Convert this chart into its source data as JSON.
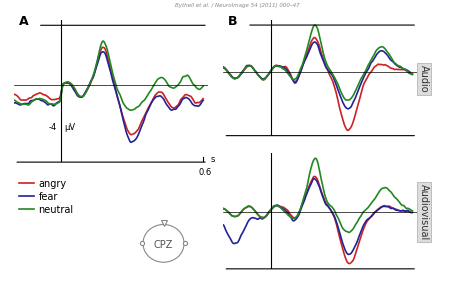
{
  "colors": {
    "angry": "#cc2222",
    "fear": "#222299",
    "neutral": "#228822"
  },
  "panel_A_label": "A",
  "panel_B_label": "B",
  "legend_labels": [
    "angry",
    "fear",
    "neutral"
  ],
  "x_label": "s",
  "x_tick_label": "0.6",
  "y_annotation": "-4",
  "y_unit": "μV",
  "label_audio": "Audio",
  "label_audiovisual": "Audiovisual",
  "label_cpz": "CPZ",
  "background": "#ffffff",
  "line_width": 1.2
}
